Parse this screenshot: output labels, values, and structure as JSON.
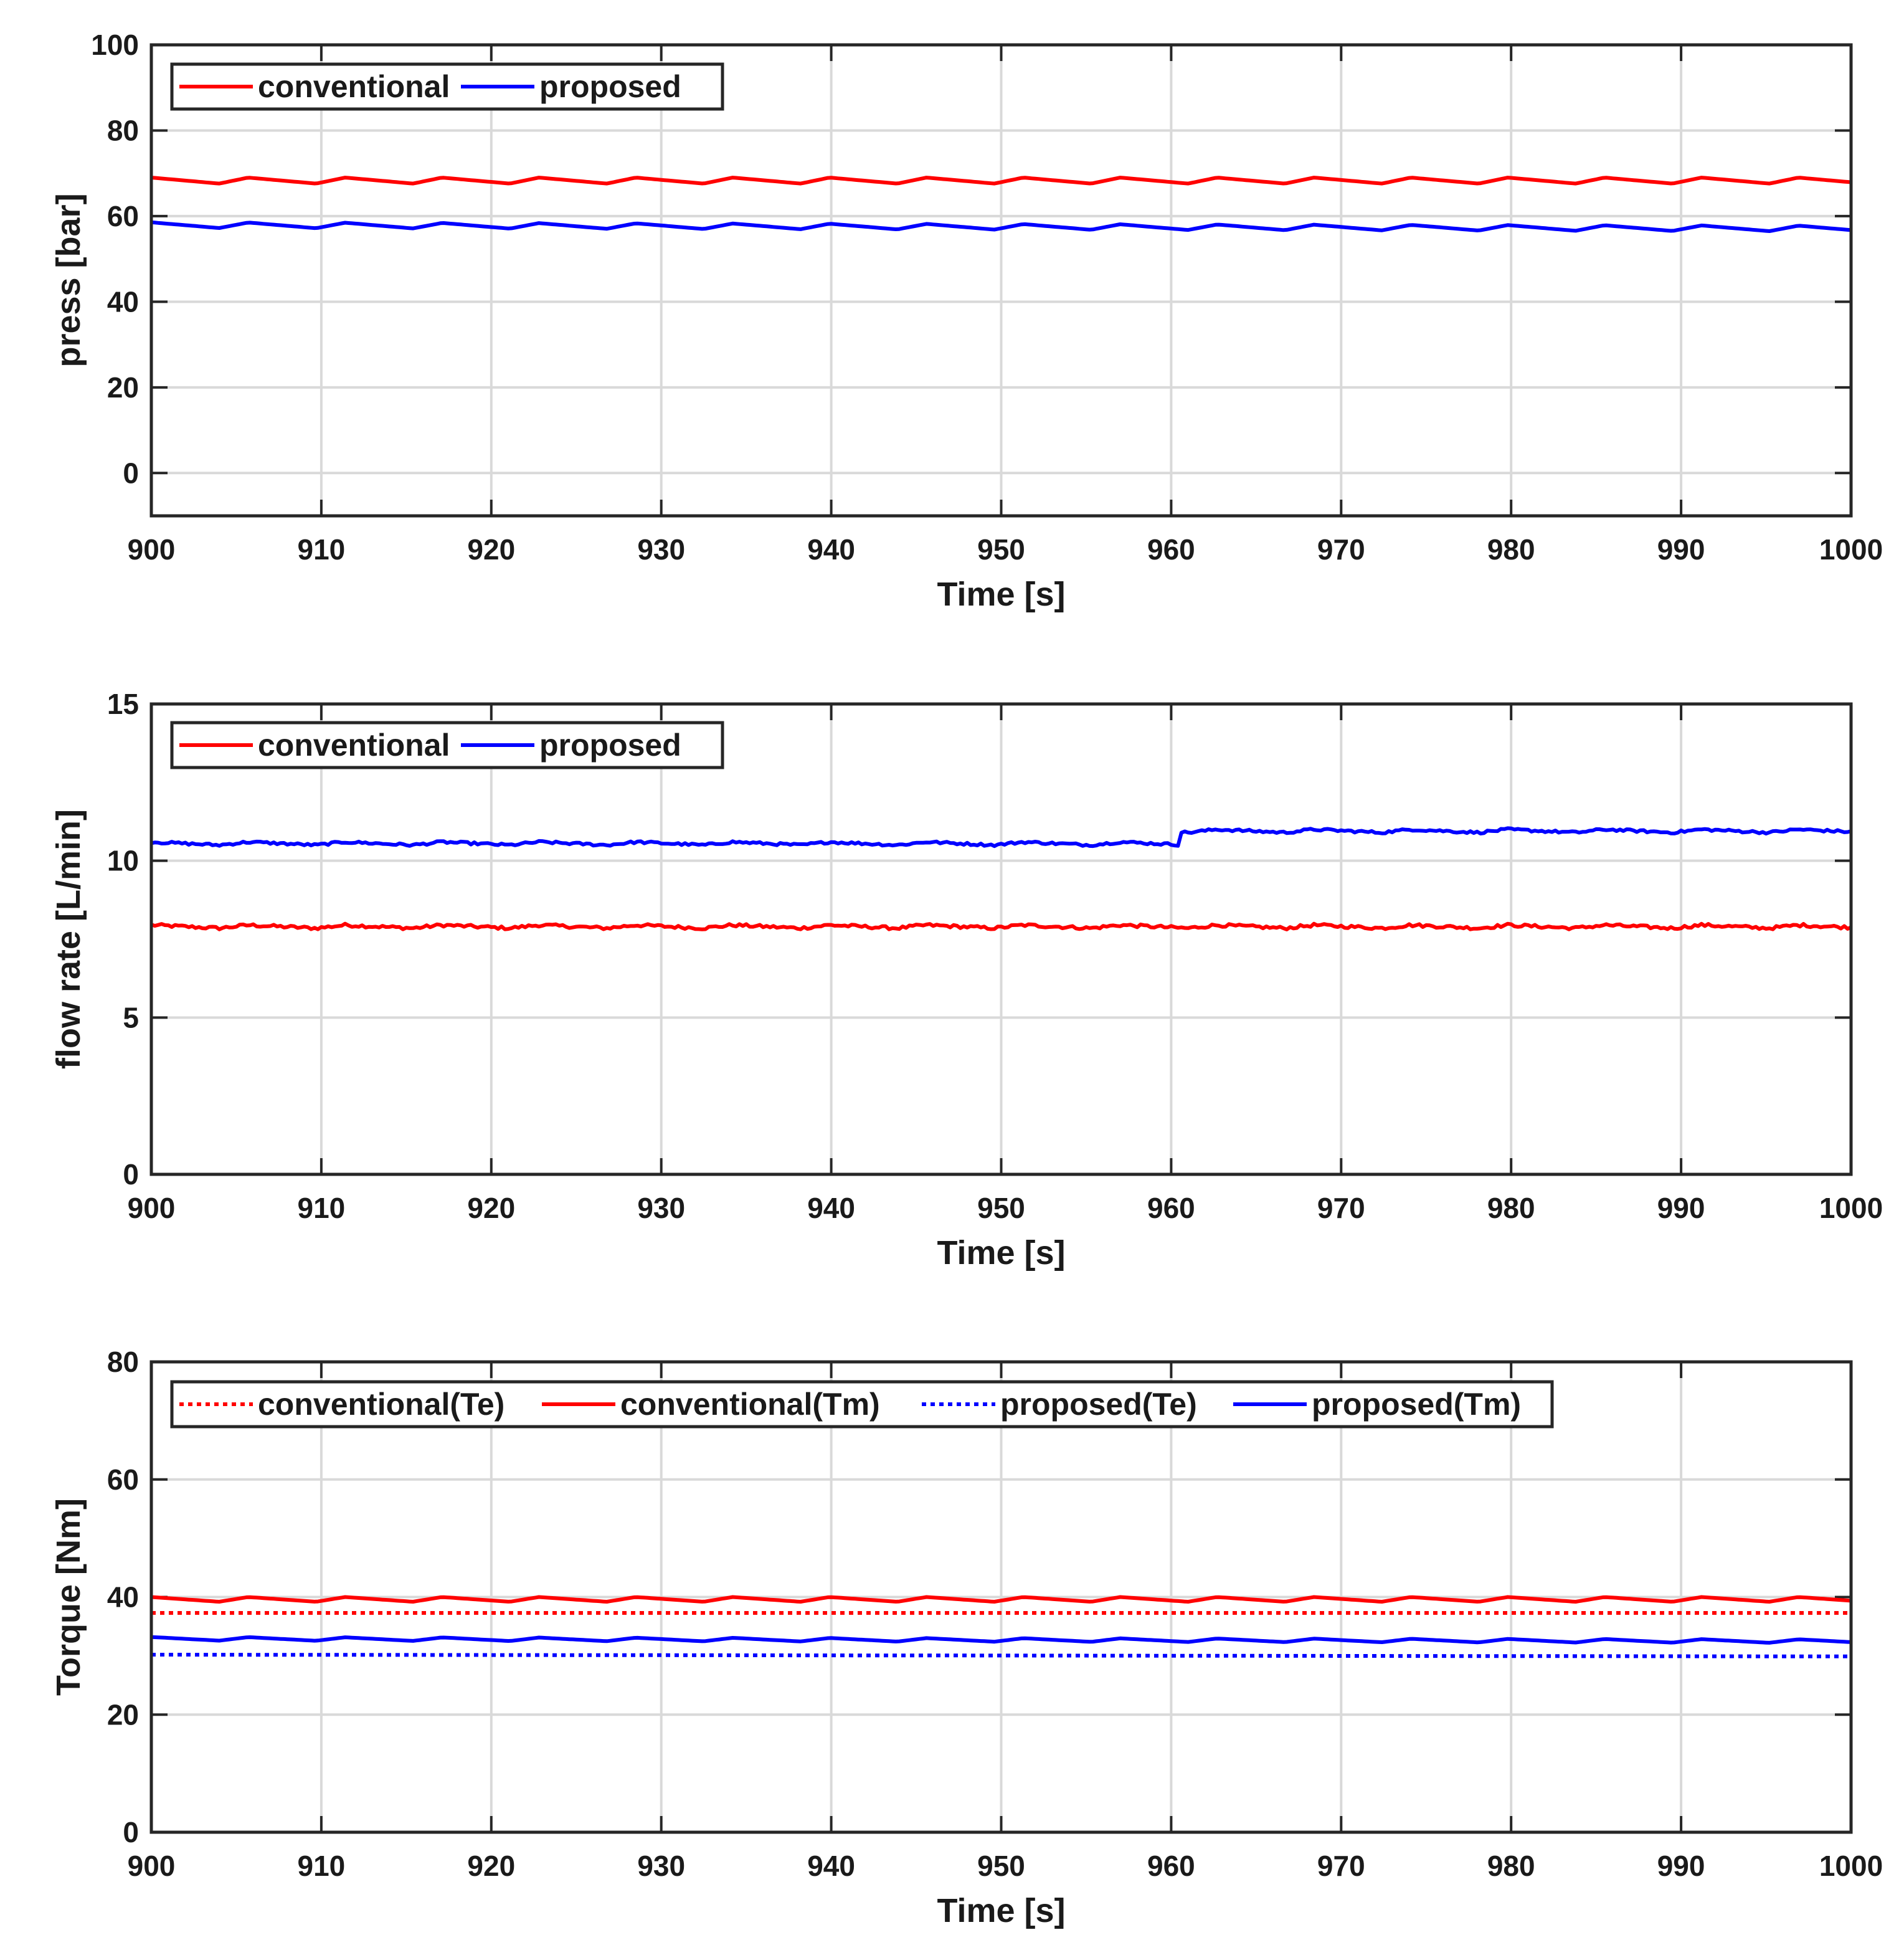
{
  "chart_data": [
    {
      "type": "line",
      "xlabel": "Time [s]",
      "ylabel": "press [bar]",
      "xlim": [
        900,
        1000
      ],
      "ylim": [
        -10,
        100
      ],
      "xticks": [
        "900",
        "910",
        "920",
        "930",
        "940",
        "950",
        "960",
        "970",
        "980",
        "990",
        "1000"
      ],
      "yticks": [
        "0",
        "20",
        "40",
        "60",
        "80",
        "100"
      ],
      "grid": true,
      "legend_position": "top-left",
      "series": [
        {
          "name": "conventional",
          "color": "#ff0000",
          "style": "solid",
          "base": 68.3,
          "amplitude": 1.4,
          "period": 5.7,
          "trend": 0.0,
          "step_at": 0,
          "step": 0,
          "noise": 0
        },
        {
          "name": "proposed",
          "color": "#0000ff",
          "style": "solid",
          "base": 57.9,
          "amplitude": 1.3,
          "period": 5.7,
          "trend": -0.8,
          "step_at": 0,
          "step": 0,
          "noise": 0
        }
      ]
    },
    {
      "type": "line",
      "xlabel": "Time [s]",
      "ylabel": "flow rate [L/min]",
      "xlim": [
        900,
        1000
      ],
      "ylim": [
        0,
        15
      ],
      "xticks": [
        "900",
        "910",
        "920",
        "930",
        "940",
        "950",
        "960",
        "970",
        "980",
        "990",
        "1000"
      ],
      "yticks": [
        "0",
        "5",
        "10",
        "15"
      ],
      "grid": true,
      "legend_position": "top-left",
      "series": [
        {
          "name": "conventional",
          "color": "#ff0000",
          "style": "solid",
          "base": 7.9,
          "amplitude": 0.1,
          "period": 5.7,
          "trend": 0.0,
          "step_at": 0,
          "step": 0,
          "noise": 0.05
        },
        {
          "name": "proposed",
          "color": "#0000ff",
          "style": "solid",
          "base": 10.55,
          "amplitude": 0.1,
          "period": 5.7,
          "trend": 0.0,
          "step_at": 960.5,
          "step": 0.4,
          "noise": 0.04
        }
      ]
    },
    {
      "type": "line",
      "xlabel": "Time [s]",
      "ylabel": "Torque [Nm]",
      "xlim": [
        900,
        1000
      ],
      "ylim": [
        0,
        80
      ],
      "xticks": [
        "900",
        "910",
        "920",
        "930",
        "940",
        "950",
        "960",
        "970",
        "980",
        "990",
        "1000"
      ],
      "yticks": [
        "0",
        "20",
        "40",
        "60",
        "80"
      ],
      "grid": true,
      "legend_position": "top",
      "series": [
        {
          "name": "conventional(Te)",
          "color": "#ff0000",
          "style": "dotted",
          "base": 37.3,
          "amplitude": 0,
          "period": 5.7,
          "trend": 0.0,
          "step_at": 0,
          "step": 0,
          "noise": 0
        },
        {
          "name": "conventional(Tm)",
          "color": "#ff0000",
          "style": "solid",
          "base": 39.6,
          "amplitude": 0.8,
          "period": 5.7,
          "trend": 0.0,
          "step_at": 0,
          "step": 0,
          "noise": 0
        },
        {
          "name": "proposed(Te)",
          "color": "#0000ff",
          "style": "dotted",
          "base": 30.2,
          "amplitude": 0,
          "period": 5.7,
          "trend": -0.3,
          "step_at": 0,
          "step": 0,
          "noise": 0
        },
        {
          "name": "proposed(Tm)",
          "color": "#0000ff",
          "style": "solid",
          "base": 32.9,
          "amplitude": 0.6,
          "period": 5.7,
          "trend": -0.4,
          "step_at": 0,
          "step": 0,
          "noise": 0
        }
      ]
    }
  ]
}
